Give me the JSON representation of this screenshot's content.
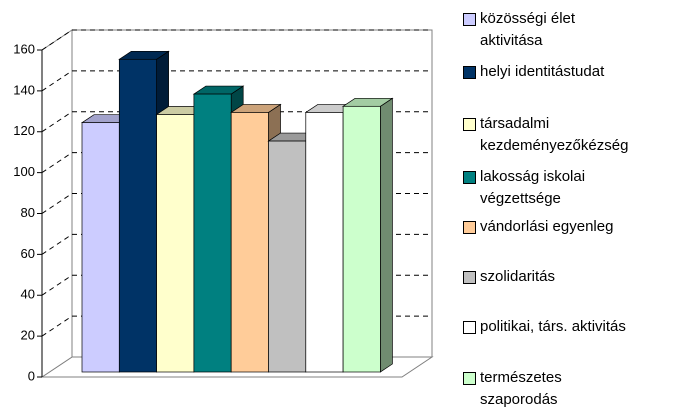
{
  "chart_data": {
    "type": "bar3d",
    "ylim": [
      0,
      160
    ],
    "yticks": [
      0,
      20,
      40,
      60,
      80,
      100,
      120,
      140,
      160
    ],
    "grid": true,
    "legend": "right",
    "series": [
      {
        "name": "közösségi élet aktivitása",
        "color": "#ccccff",
        "values": [
          122
        ]
      },
      {
        "name": "helyi identitástudat",
        "color": "#003366",
        "values": [
          153
        ]
      },
      {
        "name": "társadalmi kezdeményezőkézség",
        "color": "#ffffcc",
        "values": [
          126
        ]
      },
      {
        "name": "lakosság iskolai végzettsége",
        "color": "#008080",
        "values": [
          136
        ]
      },
      {
        "name": "vándorlási egyenleg",
        "color": "#ffcc99",
        "values": [
          127
        ]
      },
      {
        "name": "szolidaritás",
        "color": "#c0c0c0",
        "values": [
          113
        ]
      },
      {
        "name": "politikai, társ. aktivitás",
        "color": "#ffffff",
        "values": [
          127
        ]
      },
      {
        "name": "természetes szaporodás",
        "color": "#ccffcc",
        "values": [
          130
        ]
      }
    ]
  }
}
